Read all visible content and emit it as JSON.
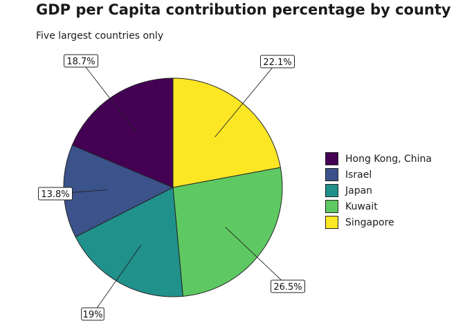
{
  "header": {
    "title": "GDP per Capita contribution percentage by county",
    "subtitle": "Five largest countries only"
  },
  "chart_data": {
    "type": "pie",
    "title": "GDP per Capita contribution percentage by county",
    "subtitle": "Five largest countries only",
    "legend_position": "right",
    "slices": [
      {
        "label": "Singapore",
        "value": 22.1,
        "value_label": "22.1%",
        "color": "#fde725"
      },
      {
        "label": "Kuwait",
        "value": 26.5,
        "value_label": "26.5%",
        "color": "#5ec962"
      },
      {
        "label": "Japan",
        "value": 19.0,
        "value_label": "19%",
        "color": "#21918c"
      },
      {
        "label": "Israel",
        "value": 13.8,
        "value_label": "13.8%",
        "color": "#3b528b"
      },
      {
        "label": "Hong Kong, China",
        "value": 18.7,
        "value_label": "18.7%",
        "color": "#440154"
      }
    ],
    "legend": [
      {
        "label": "Hong Kong, China",
        "color": "#440154"
      },
      {
        "label": "Israel",
        "color": "#3b528b"
      },
      {
        "label": "Japan",
        "color": "#21918c"
      },
      {
        "label": "Kuwait",
        "color": "#5ec962"
      },
      {
        "label": "Singapore",
        "color": "#fde725"
      }
    ]
  }
}
